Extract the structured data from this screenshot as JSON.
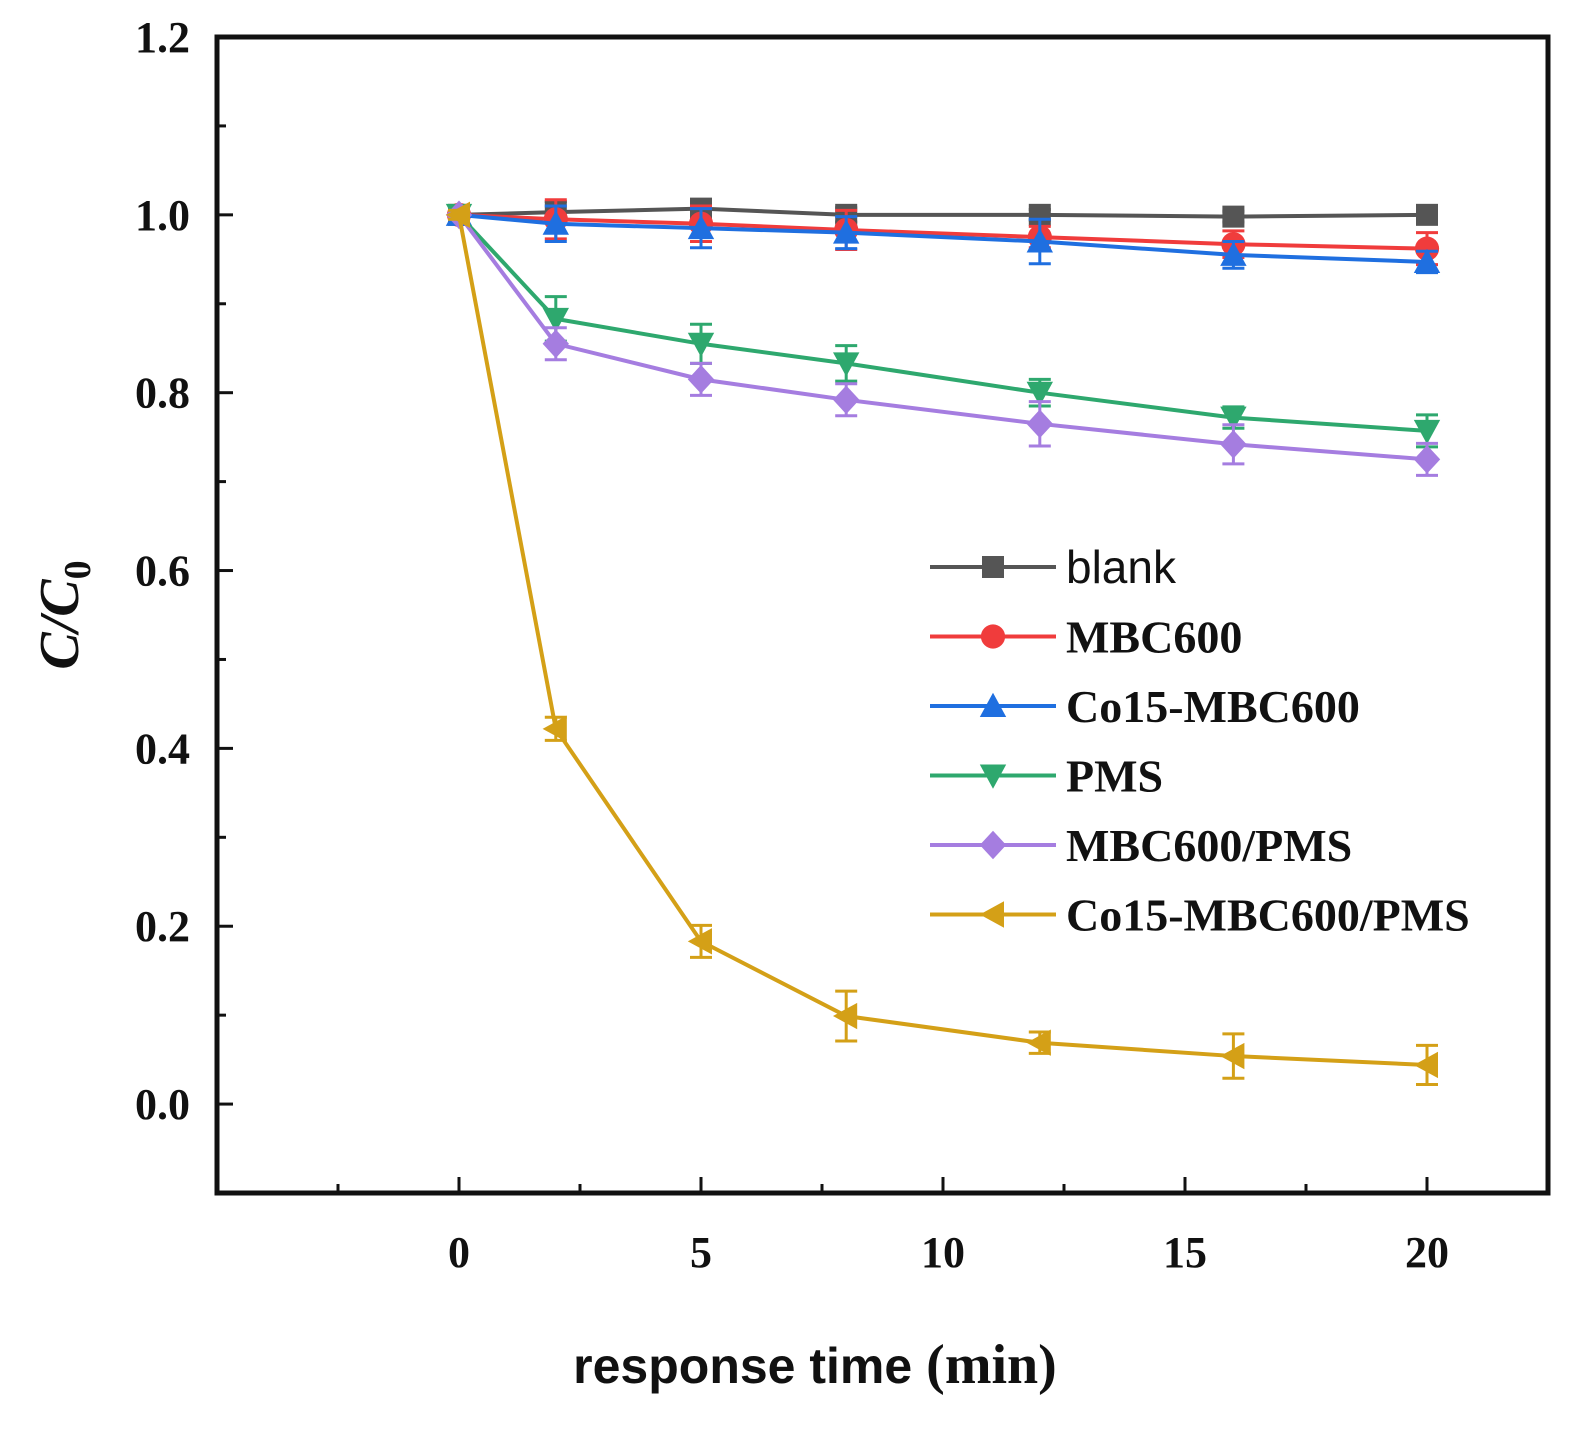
{
  "chart_data": {
    "type": "line",
    "xlabel_sans": "response time",
    "xlabel_serif": "(min)",
    "ylabel_main": "C/C",
    "ylabel_sub": "0",
    "xlim": [
      -5,
      22.5
    ],
    "ylim": [
      -0.1,
      1.2
    ],
    "x_ticks": [
      0,
      5,
      10,
      15,
      20
    ],
    "x_tick_labels": [
      "0",
      "5",
      "10",
      "15",
      "20"
    ],
    "y_ticks": [
      0.0,
      0.2,
      0.4,
      0.6,
      0.8,
      1.0,
      1.2
    ],
    "y_tick_labels": [
      "0.0",
      "0.2",
      "0.4",
      "0.6",
      "0.8",
      "1.0",
      "1.2"
    ],
    "x": [
      0,
      2,
      5,
      8,
      12,
      16,
      20
    ],
    "legend_position": "center-right",
    "series": [
      {
        "name": "blank",
        "color": "#555555",
        "marker": "square",
        "values": [
          1.0,
          1.003,
          1.007,
          1.0,
          1.0,
          0.998,
          1.0
        ],
        "errors": [
          0.005,
          0.012,
          0.01,
          0.008,
          0.006,
          0.006,
          0.005
        ]
      },
      {
        "name": "MBC600",
        "color": "#f03c3c",
        "marker": "circle",
        "values": [
          1.0,
          0.995,
          0.99,
          0.983,
          0.975,
          0.967,
          0.962
        ],
        "errors": [
          0.005,
          0.022,
          0.02,
          0.022,
          0.012,
          0.015,
          0.018
        ]
      },
      {
        "name": "Co15-MBC600",
        "color": "#1f6fe0",
        "marker": "triangle-up",
        "values": [
          1.0,
          0.99,
          0.985,
          0.98,
          0.97,
          0.955,
          0.947
        ],
        "errors": [
          0.005,
          0.02,
          0.022,
          0.018,
          0.025,
          0.015,
          0.012
        ]
      },
      {
        "name": "PMS",
        "color": "#2ea86e",
        "marker": "triangle-down",
        "values": [
          1.0,
          0.883,
          0.855,
          0.833,
          0.8,
          0.772,
          0.757
        ],
        "errors": [
          0.005,
          0.025,
          0.022,
          0.02,
          0.015,
          0.012,
          0.018
        ]
      },
      {
        "name": "MBC600/PMS",
        "color": "#a57de0",
        "marker": "diamond",
        "values": [
          1.0,
          0.855,
          0.815,
          0.792,
          0.765,
          0.742,
          0.725
        ],
        "errors": [
          0.005,
          0.018,
          0.018,
          0.018,
          0.025,
          0.022,
          0.018
        ]
      },
      {
        "name": "Co15-MBC600/PMS",
        "color": "#d4a017",
        "marker": "triangle-left",
        "values": [
          1.0,
          0.422,
          0.183,
          0.099,
          0.069,
          0.054,
          0.044
        ],
        "errors": [
          0.005,
          0.013,
          0.018,
          0.028,
          0.012,
          0.025,
          0.022
        ]
      }
    ]
  }
}
